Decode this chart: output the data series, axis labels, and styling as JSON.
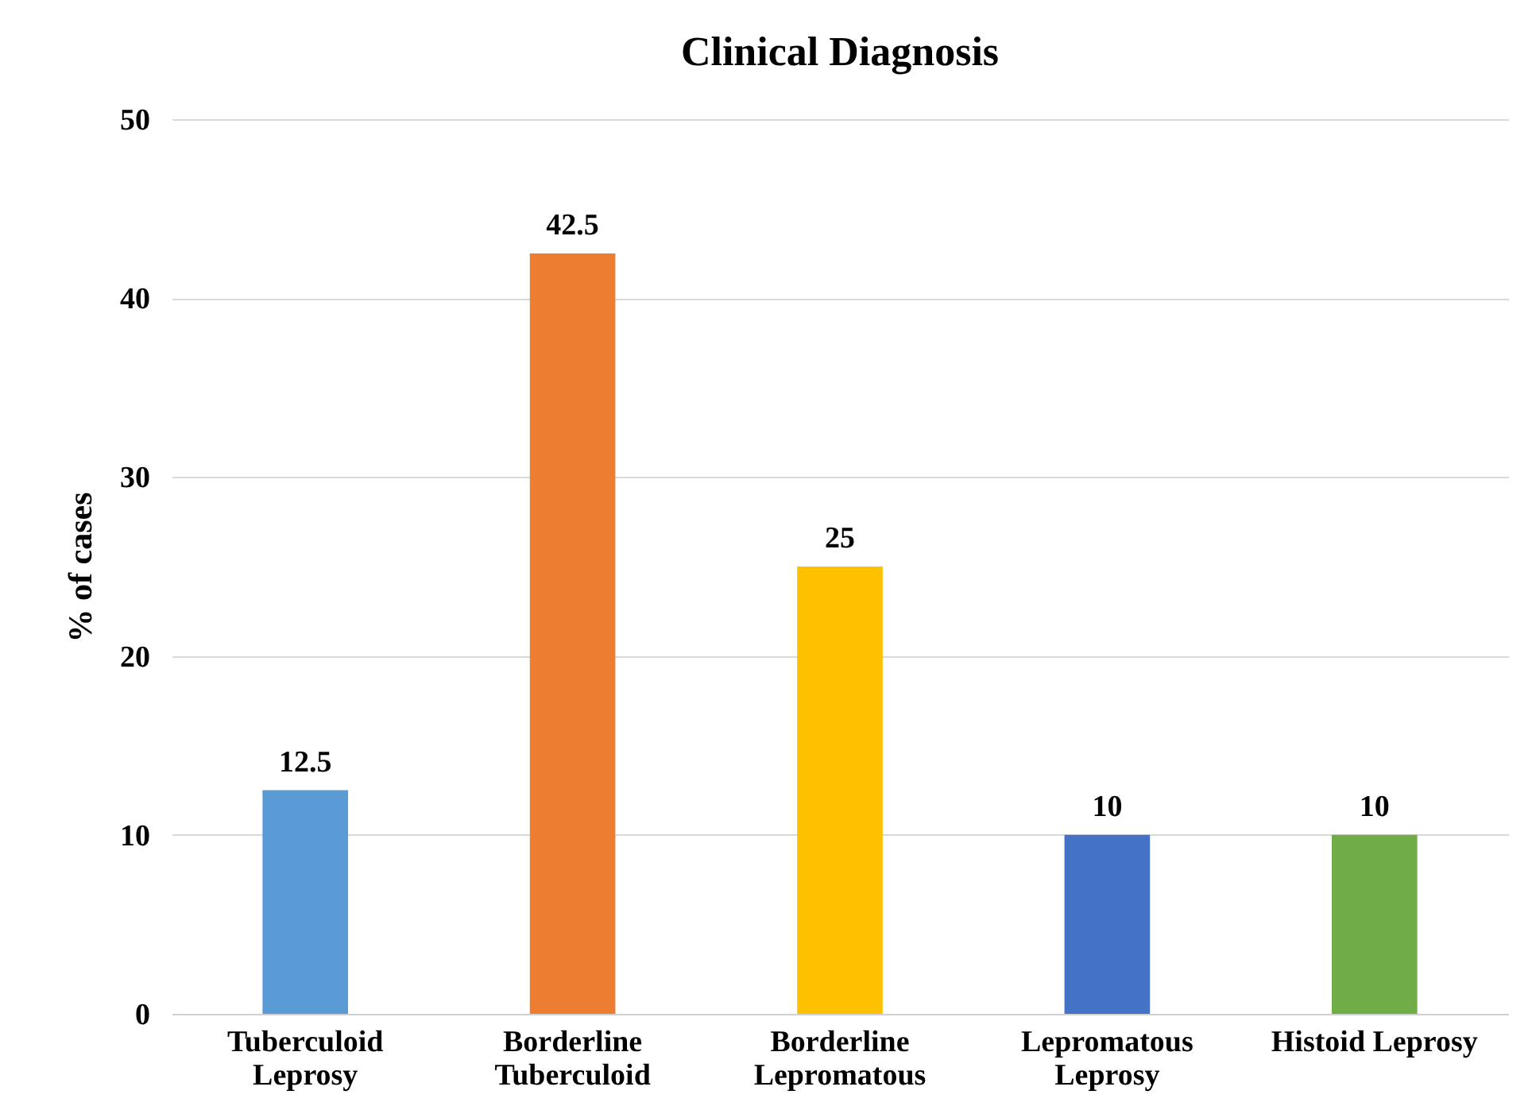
{
  "chart_data": {
    "type": "bar",
    "title": "Clinical Diagnosis",
    "ylabel": "% of cases",
    "categories": [
      "Tuberculoid Leprosy",
      "Borderline Tuberculoid",
      "Borderline Lepromatous",
      "Lepromatous Leprosy",
      "Histoid Leprosy"
    ],
    "values": [
      12.5,
      42.5,
      25,
      10,
      10
    ],
    "colors": [
      "#5b9bd5",
      "#ed7d31",
      "#ffc000",
      "#4472c4",
      "#70ad47"
    ],
    "ylim": [
      0,
      50
    ],
    "yticks": [
      0,
      10,
      20,
      30,
      40,
      50
    ],
    "grid": "y",
    "data_labels": true
  }
}
